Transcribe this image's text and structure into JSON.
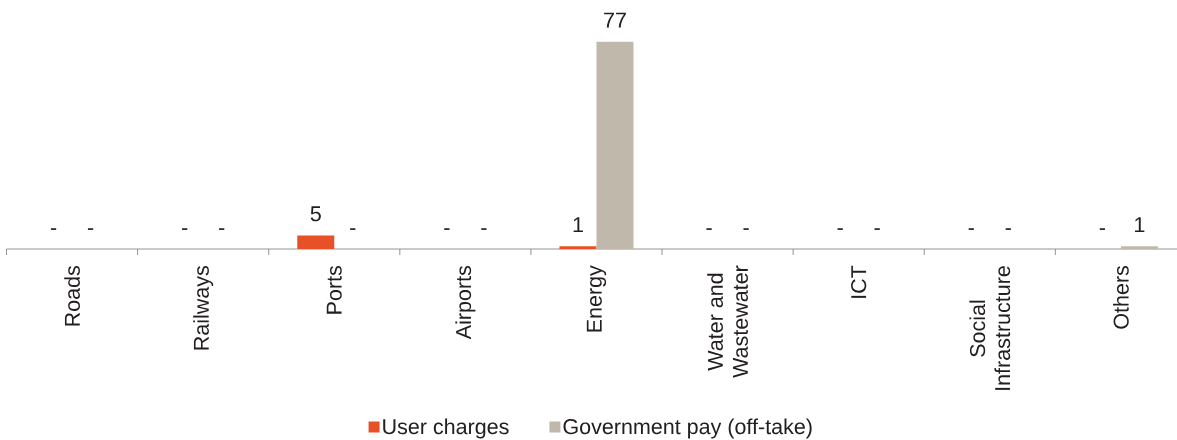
{
  "chart_data": {
    "type": "bar",
    "categories": [
      "Roads",
      "Railways",
      "Ports",
      "Airports",
      "Energy",
      "Water and Wastewater",
      "ICT",
      "Social Infrastructure",
      "Others"
    ],
    "series": [
      {
        "name": "User charges",
        "color": "#e85027",
        "values": [
          0,
          0,
          5,
          0,
          1,
          0,
          0,
          0,
          0
        ],
        "value_labels": [
          "-",
          "-",
          "5",
          "-",
          "1",
          "-",
          "-",
          "-",
          "-"
        ]
      },
      {
        "name": "Government pay (off-take)",
        "color": "#c0b8aa",
        "values": [
          0,
          0,
          0,
          0,
          77,
          0,
          0,
          0,
          1
        ],
        "value_labels": [
          "-",
          "-",
          "-",
          "-",
          "77",
          "-",
          "-",
          "-",
          "1"
        ]
      }
    ],
    "legend": "bottom"
  }
}
